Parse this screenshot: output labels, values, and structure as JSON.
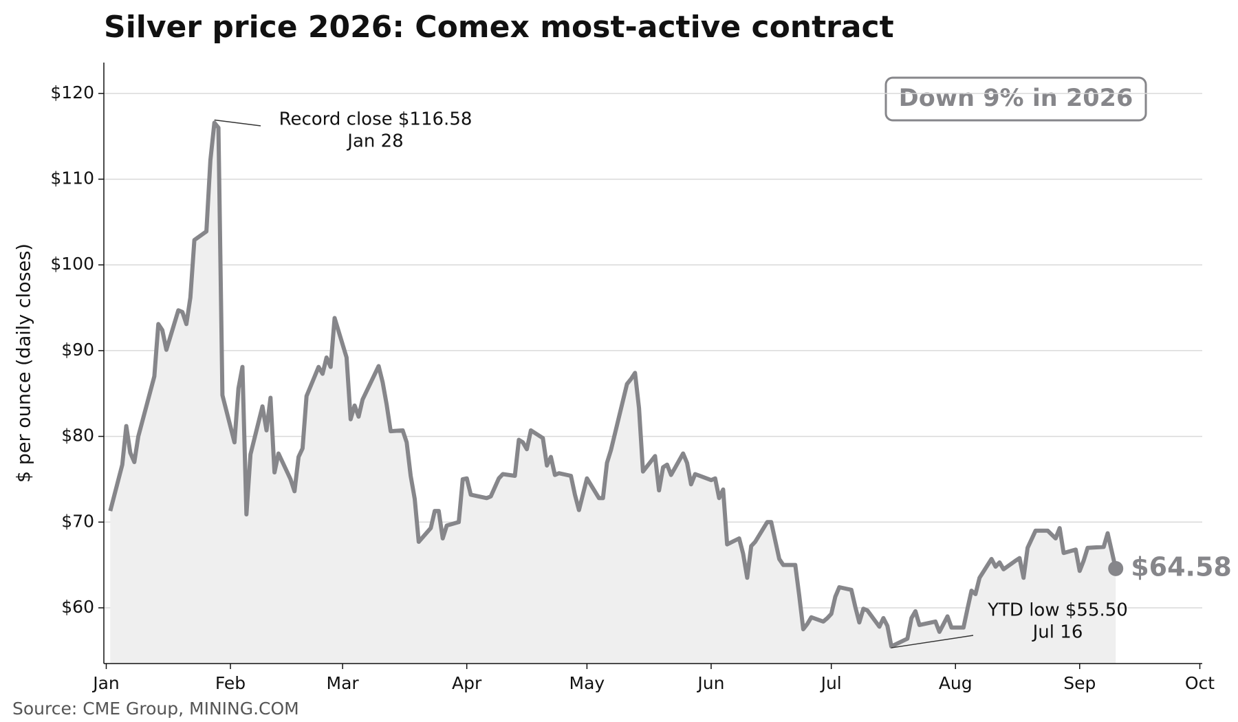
{
  "chart_data": {
    "type": "line",
    "title": "Silver price 2026: Comex most-active contract",
    "y_label": "$ per ounce (daily closes)",
    "source": "Source: CME Group, MINING.COM",
    "badge": "Down 9% in 2026",
    "end_label": "$64.58",
    "annotations": [
      {
        "lines": [
          "Record close $116.58",
          "Jan 28"
        ]
      },
      {
        "lines": [
          "YTD low $55.50",
          "Jul 16"
        ]
      }
    ],
    "color": "#86868a",
    "fill_color": "#efefef",
    "grid": true,
    "xlim": [
      0.4,
      274.6
    ],
    "ylim": [
      53.5,
      123.6
    ],
    "xticks": [
      {
        "value": 1,
        "label": "Jan"
      },
      {
        "value": 32,
        "label": "Feb"
      },
      {
        "value": 60,
        "label": "Mar"
      },
      {
        "value": 91,
        "label": "Apr"
      },
      {
        "value": 121,
        "label": "May"
      },
      {
        "value": 152,
        "label": "Jun"
      },
      {
        "value": 182,
        "label": "Jul"
      },
      {
        "value": 213,
        "label": "Aug"
      },
      {
        "value": 244,
        "label": "Sep"
      },
      {
        "value": 274,
        "label": "Oct"
      }
    ],
    "yticks": [
      {
        "value": 60,
        "label": "$60"
      },
      {
        "value": 70,
        "label": "$70"
      },
      {
        "value": 80,
        "label": "$80"
      },
      {
        "value": 90,
        "label": "$90"
      },
      {
        "value": 100,
        "label": "$100"
      },
      {
        "value": 110,
        "label": "$110"
      },
      {
        "value": 120,
        "label": "$120"
      }
    ],
    "x": [
      2,
      5,
      6,
      7,
      8,
      9,
      13,
      14,
      15,
      16,
      19,
      20,
      21,
      22,
      23,
      26,
      27,
      28,
      29,
      30,
      33,
      34,
      35,
      36,
      37,
      40,
      41,
      42,
      43,
      44,
      47,
      48,
      49,
      50,
      51,
      54,
      55,
      56,
      57,
      58,
      61,
      62,
      63,
      64,
      65,
      69,
      70,
      71,
      72,
      75,
      76,
      77,
      78,
      79,
      82,
      83,
      84,
      85,
      86,
      89,
      90,
      91,
      92,
      96,
      97,
      99,
      100,
      103,
      104,
      105,
      106,
      107,
      110,
      111,
      112,
      113,
      114,
      117,
      118,
      119,
      121,
      124,
      125,
      126,
      127,
      131,
      132,
      133,
      134,
      135,
      138,
      139,
      140,
      141,
      142,
      145,
      146,
      147,
      148,
      152,
      153,
      154,
      155,
      156,
      159,
      160,
      161,
      162,
      163,
      166,
      167,
      169,
      170,
      173,
      174,
      175,
      176,
      177,
      180,
      181,
      182,
      183,
      184,
      187,
      188,
      189,
      190,
      191,
      194,
      195,
      196,
      197,
      201,
      202,
      203,
      204,
      208,
      209,
      210,
      211,
      212,
      215,
      216,
      217,
      218,
      219,
      222,
      223,
      224,
      225,
      228,
      229,
      230,
      231,
      233,
      235,
      236,
      238,
      239,
      240,
      243,
      244,
      245,
      246,
      250,
      251,
      253
    ],
    "values": [
      71.3,
      76.7,
      81.2,
      78.1,
      77.0,
      80.0,
      87.0,
      93.1,
      92.4,
      90.1,
      94.7,
      94.5,
      93.1,
      96.2,
      102.9,
      103.9,
      112.2,
      116.58,
      116.0,
      84.8,
      79.3,
      85.6,
      88.1,
      70.9,
      77.9,
      83.5,
      80.7,
      84.5,
      75.8,
      78.0,
      75.0,
      73.6,
      77.6,
      78.6,
      84.7,
      88.1,
      87.3,
      89.2,
      88.1,
      93.8,
      89.2,
      82.0,
      83.6,
      82.3,
      84.3,
      88.2,
      86.3,
      83.7,
      80.6,
      80.7,
      79.3,
      75.4,
      72.7,
      67.7,
      69.3,
      71.3,
      71.3,
      68.1,
      69.6,
      70.0,
      75.0,
      75.1,
      73.2,
      72.8,
      73.0,
      75.1,
      75.6,
      75.4,
      79.6,
      79.3,
      78.5,
      80.7,
      79.8,
      76.6,
      77.6,
      75.5,
      75.7,
      75.4,
      73.2,
      71.4,
      75.1,
      72.8,
      72.8,
      76.9,
      78.4,
      86.1,
      86.7,
      87.4,
      83.3,
      75.9,
      77.7,
      73.7,
      76.4,
      76.7,
      75.5,
      78.0,
      76.9,
      74.4,
      75.6,
      74.9,
      75.1,
      72.8,
      73.8,
      67.4,
      68.1,
      66.3,
      63.5,
      67.2,
      67.7,
      70.0,
      70.0,
      65.7,
      65.0,
      65.0,
      61.4,
      57.5,
      58.1,
      58.9,
      58.4,
      58.8,
      59.3,
      61.3,
      62.4,
      62.1,
      60.1,
      58.3,
      59.9,
      59.7,
      57.8,
      58.8,
      57.9,
      55.5,
      56.4,
      58.8,
      59.6,
      58.0,
      58.4,
      57.2,
      58.1,
      59.0,
      57.7,
      57.7,
      59.9,
      62.0,
      61.6,
      63.5,
      65.7,
      64.8,
      65.3,
      64.5,
      65.5,
      65.8,
      63.5,
      67.0,
      69.0,
      69.0,
      69.0,
      68.1,
      69.3,
      66.4,
      66.8,
      64.3,
      65.5,
      67.0,
      67.1,
      68.7,
      64.58
    ]
  }
}
